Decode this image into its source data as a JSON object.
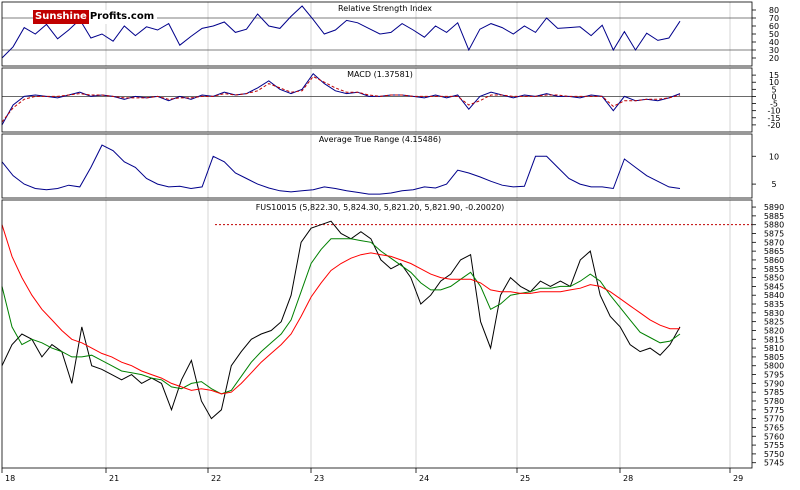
{
  "logo": {
    "part1": "Sunshine",
    "part2": "Profits.com"
  },
  "chart_data": [
    {
      "type": "line",
      "title": "Relative Strength Index",
      "ylim": [
        10,
        90
      ],
      "yticks": [
        20,
        30,
        40,
        50,
        60,
        70,
        80
      ],
      "ytick_labels": [
        "20",
        "30",
        "40",
        "50",
        "60",
        "70",
        "80"
      ],
      "reference_lines": [
        30,
        70
      ],
      "series": [
        {
          "color": "#00008b",
          "values": [
            20,
            34,
            58,
            50,
            62,
            44,
            55,
            68,
            45,
            50,
            41,
            60,
            48,
            59,
            55,
            63,
            36,
            47,
            57,
            60,
            65,
            52,
            56,
            75,
            60,
            57,
            72,
            85,
            68,
            50,
            55,
            67,
            64,
            57,
            50,
            52,
            63,
            55,
            46,
            60,
            52,
            64,
            30,
            56,
            63,
            58,
            50,
            60,
            52,
            70,
            57,
            58,
            59,
            48,
            61,
            30,
            53,
            30,
            51,
            42,
            45,
            66
          ]
        }
      ]
    },
    {
      "type": "line",
      "title": "MACD (1.37581)",
      "ylim": [
        -25,
        20
      ],
      "yticks": [
        15,
        10,
        5,
        0,
        -5,
        -10,
        -15,
        -20
      ],
      "ytick_labels": [
        "15",
        "10",
        "5",
        "0",
        "-5",
        "-10",
        "-15",
        "-20"
      ],
      "reference_lines": [
        0
      ],
      "series": [
        {
          "color": "#00008b",
          "style": "solid",
          "values": [
            -20,
            -6,
            0,
            1,
            0,
            -1,
            1,
            3,
            0,
            1,
            0,
            -2,
            0,
            -1,
            0,
            -3,
            0,
            -2,
            1,
            0,
            3,
            1,
            2,
            6,
            11,
            5,
            2,
            5,
            16,
            9,
            4,
            2,
            3,
            0,
            0,
            1,
            1,
            0,
            -1,
            1,
            -1,
            1,
            -9,
            0,
            3,
            1,
            -1,
            1,
            0,
            2,
            0,
            0,
            -1,
            1,
            0,
            -10,
            0,
            -3,
            -2,
            -3,
            -1,
            2
          ]
        },
        {
          "color": "#c00000",
          "style": "dashed",
          "values": [
            -18,
            -8,
            -2,
            0,
            0,
            0,
            1,
            2,
            1,
            1,
            0,
            -1,
            -1,
            -1,
            0,
            -2,
            -1,
            -1,
            0,
            0,
            2,
            1,
            2,
            4,
            9,
            6,
            3,
            4,
            14,
            10,
            6,
            3,
            3,
            1,
            0,
            1,
            1,
            0,
            0,
            0,
            0,
            0,
            -6,
            -3,
            1,
            1,
            0,
            0,
            0,
            1,
            1,
            0,
            0,
            0,
            0,
            -7,
            -3,
            -3,
            -2,
            -2,
            -1,
            1
          ]
        }
      ]
    },
    {
      "type": "line",
      "title": "Average True Range (4.15486)",
      "ylim": [
        2.5,
        14
      ],
      "yticks": [
        5,
        10
      ],
      "ytick_labels": [
        "5",
        "10"
      ],
      "series": [
        {
          "color": "#00008b",
          "values": [
            9,
            6.5,
            5,
            4.2,
            4,
            4.2,
            4.8,
            4.5,
            8,
            12,
            11,
            9,
            8,
            6,
            5,
            4.5,
            4.6,
            4.2,
            4.5,
            10,
            9,
            7,
            6,
            5,
            4.3,
            3.8,
            3.6,
            3.8,
            4,
            4.5,
            4.2,
            3.8,
            3.5,
            3.2,
            3.2,
            3.4,
            3.8,
            4,
            4.5,
            4.3,
            5,
            7.5,
            7,
            6.3,
            5.5,
            4.8,
            4.5,
            4.6,
            10,
            10,
            8,
            6,
            5,
            4.5,
            4.5,
            4.2,
            9.5,
            8,
            6.5,
            5.5,
            4.5,
            4.2
          ]
        }
      ]
    },
    {
      "type": "line",
      "title": "FUS10015 (5,822.30, 5,824.30, 5,821.20, 5,821.90, -0.20020)",
      "ylim": [
        5742,
        5894
      ],
      "yticks": [
        5745,
        5750,
        5755,
        5760,
        5765,
        5770,
        5775,
        5780,
        5785,
        5790,
        5795,
        5800,
        5805,
        5810,
        5815,
        5820,
        5825,
        5830,
        5835,
        5840,
        5845,
        5850,
        5855,
        5860,
        5865,
        5870,
        5875,
        5880,
        5885,
        5890
      ],
      "ytick_labels": [
        "5745",
        "5750",
        "5755",
        "5760",
        "5765",
        "5770",
        "5775",
        "5780",
        "5785",
        "5790",
        "5795",
        "5800",
        "5805",
        "5810",
        "5815",
        "5820",
        "5825",
        "5830",
        "5835",
        "5840",
        "5845",
        "5850",
        "5855",
        "5860",
        "5865",
        "5870",
        "5875",
        "5880",
        "5885",
        "5890"
      ],
      "reference_level": 5880,
      "x_labels": [
        "18",
        "21",
        "22",
        "23",
        "24",
        "25",
        "28",
        "29"
      ],
      "series": [
        {
          "color": "#000000",
          "values": [
            5800,
            5812,
            5818,
            5815,
            5805,
            5812,
            5808,
            5790,
            5822,
            5800,
            5798,
            5795,
            5792,
            5795,
            5790,
            5793,
            5790,
            5775,
            5792,
            5803,
            5780,
            5770,
            5775,
            5800,
            5808,
            5815,
            5818,
            5820,
            5825,
            5840,
            5870,
            5878,
            5880,
            5882,
            5875,
            5872,
            5876,
            5872,
            5860,
            5855,
            5858,
            5850,
            5835,
            5840,
            5848,
            5852,
            5860,
            5863,
            5825,
            5810,
            5840,
            5850,
            5845,
            5842,
            5848,
            5845,
            5848,
            5845,
            5860,
            5865,
            5840,
            5828,
            5822,
            5812,
            5808,
            5810,
            5806,
            5812,
            5822
          ]
        },
        {
          "color": "#008000",
          "values": [
            5845,
            5822,
            5812,
            5815,
            5813,
            5810,
            5808,
            5805,
            5805,
            5806,
            5803,
            5800,
            5797,
            5796,
            5795,
            5793,
            5792,
            5788,
            5787,
            5790,
            5791,
            5787,
            5784,
            5786,
            5794,
            5802,
            5808,
            5813,
            5818,
            5826,
            5842,
            5858,
            5866,
            5872,
            5872,
            5872,
            5871,
            5870,
            5865,
            5861,
            5857,
            5853,
            5847,
            5843,
            5843,
            5845,
            5849,
            5853,
            5845,
            5832,
            5835,
            5840,
            5841,
            5842,
            5844,
            5844,
            5845,
            5845,
            5848,
            5852,
            5848,
            5840,
            5833,
            5826,
            5819,
            5816,
            5813,
            5814,
            5818
          ]
        },
        {
          "color": "#ff0000",
          "values": [
            5880,
            5862,
            5850,
            5840,
            5832,
            5826,
            5820,
            5815,
            5813,
            5810,
            5807,
            5805,
            5802,
            5800,
            5797,
            5795,
            5793,
            5790,
            5788,
            5786,
            5787,
            5786,
            5784,
            5785,
            5790,
            5796,
            5802,
            5807,
            5812,
            5818,
            5828,
            5839,
            5847,
            5854,
            5858,
            5861,
            5863,
            5864,
            5863,
            5862,
            5860,
            5858,
            5855,
            5852,
            5850,
            5849,
            5849,
            5849,
            5847,
            5843,
            5842,
            5842,
            5841,
            5841,
            5842,
            5842,
            5842,
            5843,
            5844,
            5846,
            5845,
            5842,
            5838,
            5834,
            5830,
            5826,
            5823,
            5821,
            5821
          ]
        }
      ]
    }
  ]
}
